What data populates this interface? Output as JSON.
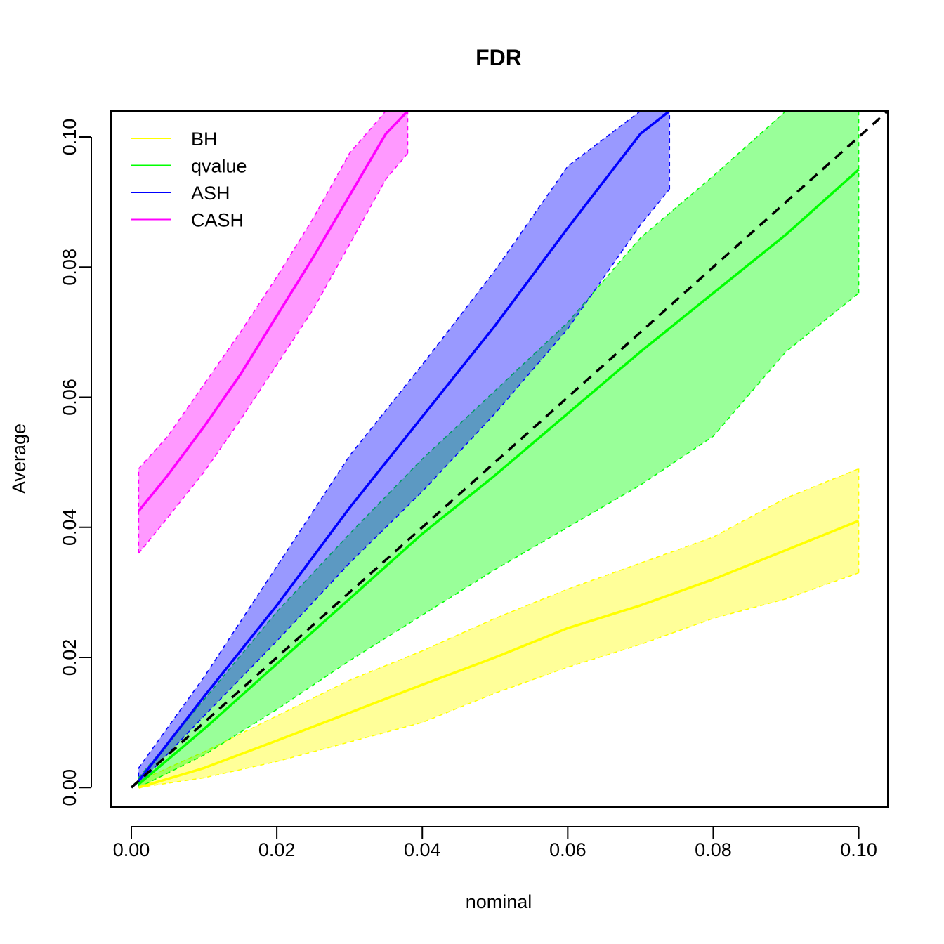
{
  "chart_data": {
    "type": "line",
    "title": "FDR",
    "xlabel": "nominal",
    "ylabel": "Average",
    "xlim": [
      -0.0028,
      0.104
    ],
    "ylim": [
      -0.003,
      0.104
    ],
    "x_ticks": [
      0.0,
      0.02,
      0.04,
      0.06,
      0.08,
      0.1
    ],
    "x_tick_labels": [
      "0.00",
      "0.02",
      "0.04",
      "0.06",
      "0.08",
      "0.10"
    ],
    "y_ticks": [
      0.0,
      0.02,
      0.04,
      0.06,
      0.08,
      0.1
    ],
    "y_tick_labels": [
      "0.00",
      "0.02",
      "0.04",
      "0.06",
      "0.08",
      "0.10"
    ],
    "grid": false,
    "legend_position": "top-left",
    "reference_line": {
      "style": "dashed",
      "color": "#000000",
      "x": [
        0.0,
        0.104
      ],
      "y": [
        0.0,
        0.104
      ]
    },
    "series": [
      {
        "name": "BH",
        "color": "#ffff00",
        "fill": "#ffff00",
        "x": [
          0.001,
          0.01,
          0.02,
          0.03,
          0.04,
          0.05,
          0.06,
          0.07,
          0.08,
          0.09,
          0.1
        ],
        "mean": [
          0.0,
          0.003,
          0.0072,
          0.0115,
          0.0158,
          0.02,
          0.0245,
          0.028,
          0.032,
          0.0365,
          0.041
        ],
        "lower": [
          0.0,
          0.0015,
          0.004,
          0.007,
          0.01,
          0.0145,
          0.0185,
          0.022,
          0.026,
          0.029,
          0.033
        ],
        "upper": [
          0.001,
          0.0055,
          0.011,
          0.0165,
          0.021,
          0.026,
          0.0305,
          0.0345,
          0.0385,
          0.0445,
          0.049
        ]
      },
      {
        "name": "qvalue",
        "color": "#00ff00",
        "fill": "#00ff00",
        "x": [
          0.001,
          0.01,
          0.02,
          0.03,
          0.04,
          0.05,
          0.06,
          0.07,
          0.08,
          0.09,
          0.1
        ],
        "mean": [
          0.0005,
          0.009,
          0.019,
          0.029,
          0.039,
          0.048,
          0.0575,
          0.067,
          0.076,
          0.085,
          0.095
        ],
        "lower": [
          0.0,
          0.005,
          0.012,
          0.0195,
          0.0265,
          0.0335,
          0.04,
          0.0465,
          0.054,
          0.067,
          0.076
        ],
        "upper": [
          0.0015,
          0.0135,
          0.027,
          0.039,
          0.0505,
          0.061,
          0.0715,
          0.0845,
          0.094,
          0.104,
          0.104
        ]
      },
      {
        "name": "ASH",
        "color": "#0000ff",
        "fill": "#0000ff",
        "x": [
          0.001,
          0.01,
          0.02,
          0.03,
          0.04,
          0.05,
          0.06,
          0.07,
          0.074
        ],
        "mean": [
          0.001,
          0.014,
          0.028,
          0.043,
          0.057,
          0.071,
          0.086,
          0.1005,
          0.104
        ],
        "lower": [
          0.0005,
          0.011,
          0.0225,
          0.0345,
          0.0455,
          0.0575,
          0.0705,
          0.0865,
          0.092
        ],
        "upper": [
          0.003,
          0.017,
          0.034,
          0.051,
          0.065,
          0.0795,
          0.0955,
          0.104,
          0.104
        ]
      },
      {
        "name": "CASH",
        "color": "#ff00ff",
        "fill": "#ff00ff",
        "x": [
          0.001,
          0.005,
          0.01,
          0.015,
          0.02,
          0.025,
          0.03,
          0.035,
          0.038
        ],
        "mean": [
          0.0425,
          0.048,
          0.0555,
          0.0635,
          0.0725,
          0.0815,
          0.091,
          0.1005,
          0.104
        ],
        "lower": [
          0.036,
          0.0415,
          0.0485,
          0.0565,
          0.065,
          0.0735,
          0.0835,
          0.0935,
          0.0975
        ],
        "upper": [
          0.049,
          0.054,
          0.062,
          0.07,
          0.0785,
          0.0875,
          0.0975,
          0.104,
          0.104
        ]
      }
    ]
  }
}
